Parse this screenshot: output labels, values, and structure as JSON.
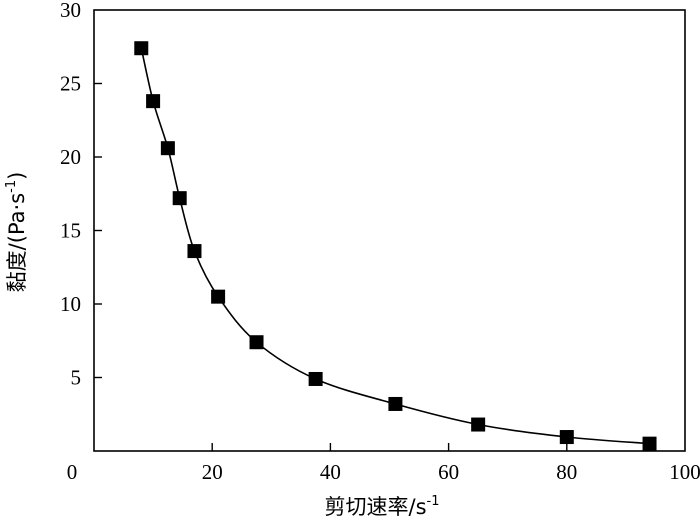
{
  "chart_data": {
    "type": "line",
    "x": [
      8,
      10,
      12.5,
      14.5,
      17,
      21,
      27.5,
      37.5,
      51,
      65,
      80,
      94
    ],
    "series": [
      {
        "values": [
          27.4,
          23.8,
          20.6,
          17.2,
          13.6,
          10.5,
          7.4,
          4.9,
          3.2,
          1.8,
          0.95,
          0.5
        ]
      }
    ],
    "xlabel": "剪切速率/s",
    "xlabel_sup": "-1",
    "ylabel": "黏度/(Pa·s",
    "ylabel_sup": "-1",
    "ylabel_close": ")",
    "xlim": [
      0,
      100
    ],
    "ylim": [
      0,
      30
    ],
    "xticks": [
      0,
      20,
      40,
      60,
      80,
      100
    ],
    "yticks": [
      5,
      10,
      15,
      20,
      25,
      30
    ],
    "marker": "square",
    "grid": false,
    "legend": "none",
    "colors": {
      "line": "#000000",
      "marker": "#000000",
      "axis": "#000000"
    }
  }
}
